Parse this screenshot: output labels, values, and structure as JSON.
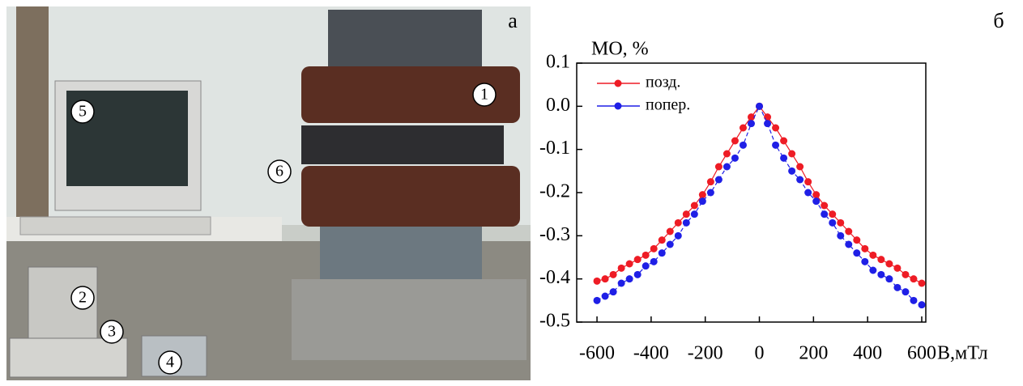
{
  "photo": {
    "panel_label": "а",
    "markers": [
      "1",
      "2",
      "3",
      "4",
      "5",
      "6"
    ]
  },
  "chart_data": {
    "type": "line",
    "panel_label": "б",
    "ylabel": "МО, %",
    "xlabel": "В,мТл",
    "x": [
      -600,
      -570,
      -540,
      -510,
      -480,
      -450,
      -420,
      -390,
      -360,
      -330,
      -300,
      -270,
      -240,
      -210,
      -180,
      -150,
      -120,
      -90,
      -60,
      -30,
      0,
      30,
      60,
      90,
      120,
      150,
      180,
      210,
      240,
      270,
      300,
      330,
      360,
      390,
      420,
      450,
      480,
      510,
      540,
      570,
      600
    ],
    "series": [
      {
        "name": "позд.",
        "color": "#ee1c25",
        "values": [
          -0.405,
          -0.4,
          -0.39,
          -0.375,
          -0.365,
          -0.355,
          -0.345,
          -0.33,
          -0.31,
          -0.29,
          -0.27,
          -0.25,
          -0.23,
          -0.205,
          -0.175,
          -0.14,
          -0.11,
          -0.08,
          -0.05,
          -0.025,
          0,
          -0.025,
          -0.05,
          -0.08,
          -0.11,
          -0.14,
          -0.175,
          -0.205,
          -0.23,
          -0.25,
          -0.27,
          -0.29,
          -0.31,
          -0.33,
          -0.345,
          -0.355,
          -0.365,
          -0.375,
          -0.39,
          -0.4,
          -0.41
        ]
      },
      {
        "name": "попер.",
        "color": "#1f1fe6",
        "values": [
          -0.45,
          -0.44,
          -0.43,
          -0.41,
          -0.4,
          -0.39,
          -0.37,
          -0.36,
          -0.34,
          -0.32,
          -0.3,
          -0.27,
          -0.25,
          -0.22,
          -0.2,
          -0.17,
          -0.14,
          -0.12,
          -0.09,
          -0.04,
          0,
          -0.04,
          -0.09,
          -0.12,
          -0.15,
          -0.17,
          -0.2,
          -0.22,
          -0.25,
          -0.27,
          -0.3,
          -0.32,
          -0.34,
          -0.36,
          -0.38,
          -0.39,
          -0.4,
          -0.42,
          -0.43,
          -0.45,
          -0.46
        ]
      }
    ],
    "xlim": [
      -675,
      615
    ],
    "ylim": [
      -0.5,
      0.1
    ],
    "xticks": [
      -600,
      -400,
      -200,
      0,
      200,
      400,
      600
    ],
    "yticks": [
      0.1,
      {
        "value": 0,
        "label": "0.0"
      },
      -0.1,
      -0.2,
      -0.3,
      -0.4,
      -0.5
    ],
    "legend": "upper-left"
  }
}
